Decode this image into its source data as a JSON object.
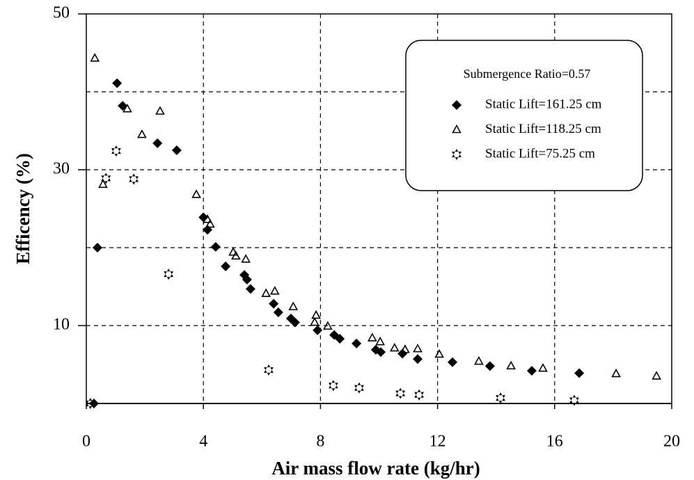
{
  "chart_data": {
    "type": "scatter",
    "xlabel": "Air mass flow rate (kg/hr)",
    "ylabel": "Efficency (%)",
    "xlim": [
      0,
      20
    ],
    "ylim": [
      0,
      50
    ],
    "xticks": [
      0,
      4,
      8,
      12,
      16,
      20
    ],
    "yticks": [
      10,
      30,
      50
    ],
    "xgrid": [
      4,
      8,
      12,
      16
    ],
    "ygrid": [
      10,
      20,
      30,
      40
    ],
    "grid": true,
    "legend_title": "Submergence Ratio=0.57",
    "legend": "upper right",
    "series": [
      {
        "name": "Static Lift=161.25 cm",
        "marker": "diamond",
        "color": "#000000",
        "x": [
          0.26,
          0.38,
          1.05,
          1.24,
          2.43,
          3.09,
          4.0,
          4.14,
          4.42,
          4.76,
          5.4,
          5.49,
          5.61,
          6.4,
          6.56,
          6.99,
          7.13,
          7.9,
          8.47,
          8.66,
          9.23,
          9.89,
          10.06,
          10.8,
          11.32,
          12.51,
          13.79,
          15.22,
          16.84
        ],
        "values": [
          0,
          20.0,
          41.1,
          38.2,
          33.4,
          32.5,
          23.9,
          22.3,
          20.1,
          17.6,
          16.5,
          15.9,
          14.7,
          12.8,
          11.7,
          10.9,
          10.4,
          9.4,
          8.8,
          8.3,
          7.7,
          6.9,
          6.6,
          6.4,
          5.7,
          5.3,
          4.8,
          4.2,
          3.9
        ]
      },
      {
        "name": "Static Lift=118.25 cm",
        "marker": "triangle",
        "color": "#000000",
        "x": [
          0.29,
          0.57,
          1.4,
          1.9,
          2.52,
          3.76,
          4.14,
          4.23,
          5.02,
          5.11,
          5.45,
          6.14,
          6.44,
          7.07,
          7.85,
          7.8,
          8.25,
          9.77,
          10.04,
          10.53,
          10.89,
          11.32,
          12.06,
          13.41,
          14.51,
          15.6,
          18.1,
          19.48
        ],
        "values": [
          44.3,
          28.1,
          37.8,
          34.5,
          37.5,
          26.8,
          23.6,
          23.0,
          19.4,
          18.9,
          18.5,
          14.1,
          14.4,
          12.4,
          11.3,
          10.4,
          9.9,
          8.4,
          7.9,
          7.1,
          6.9,
          7.0,
          6.3,
          5.4,
          4.8,
          4.5,
          3.8,
          3.5
        ]
      },
      {
        "name": "Static Lift=75.25 cm",
        "marker": "star",
        "color": "#000000",
        "x": [
          0.14,
          0.67,
          1.02,
          1.62,
          2.81,
          6.23,
          8.44,
          9.32,
          10.73,
          11.37,
          14.15,
          16.67
        ],
        "values": [
          0,
          28.9,
          32.4,
          28.8,
          16.6,
          4.3,
          2.3,
          2.0,
          1.3,
          1.1,
          0.7,
          0.4
        ]
      }
    ]
  }
}
